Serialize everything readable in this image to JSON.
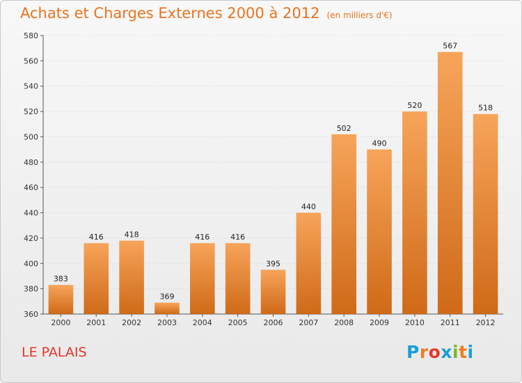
{
  "title": "Achats et Charges Externes 2000 à 2012",
  "unit_note": "(en milliers d'€)",
  "place": "LE PALAIS",
  "logo": {
    "letters": [
      "P",
      "r",
      "o",
      "x",
      "i",
      "t",
      "i"
    ],
    "colors": [
      "#1a9fd8",
      "#f07c1e",
      "#e53a2a",
      "#1a9fd8",
      "#7ab929",
      "#f07c1e",
      "#1a9fd8"
    ]
  },
  "colors": {
    "title": "#e8731e",
    "place": "#e0352a",
    "bar_top": "#f7a45a",
    "bar_bottom": "#cf6a18"
  },
  "chart_data": {
    "type": "bar",
    "title": "Achats et Charges Externes 2000 à 2012",
    "subtitle": "(en milliers d'€)",
    "xlabel": "",
    "ylabel": "",
    "categories": [
      "2000",
      "2001",
      "2002",
      "2003",
      "2004",
      "2005",
      "2006",
      "2007",
      "2008",
      "2009",
      "2010",
      "2011",
      "2012"
    ],
    "values": [
      383,
      416,
      418,
      369,
      416,
      416,
      395,
      440,
      502,
      490,
      520,
      567,
      518
    ],
    "ylim": [
      360,
      580
    ],
    "yticks": [
      360,
      380,
      400,
      420,
      440,
      460,
      480,
      500,
      520,
      540,
      560,
      580
    ],
    "grid": true,
    "data_labels": true
  }
}
